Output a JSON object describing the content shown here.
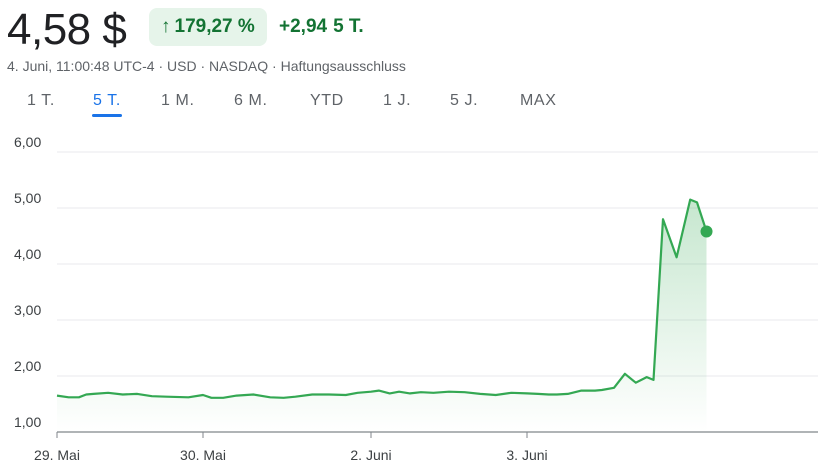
{
  "quote": {
    "price": "4,58 $",
    "change_arrow": "↑",
    "change_pct": "179,27 %",
    "change_abs": "+2,94",
    "change_period": "5 T.",
    "meta": "4. Juni, 11:00:48 UTC-4 · USD · NASDAQ · Haftungsausschluss"
  },
  "tabs": [
    "1 T.",
    "5 T.",
    "1 M.",
    "6 M.",
    "YTD",
    "1 J.",
    "5 J.",
    "MAX"
  ],
  "active_tab": "5 T.",
  "colors": {
    "accent": "#1a73e8",
    "up": "#137333",
    "line": "#34a853",
    "pill_bg": "#e6f4ea"
  },
  "chart_data": {
    "type": "area",
    "yticks": [
      "6,00",
      "5,00",
      "4,00",
      "3,00",
      "2,00",
      "1,00"
    ],
    "ytick_values": [
      6,
      5,
      4,
      3,
      2,
      1
    ],
    "ylim": [
      1,
      6.2
    ],
    "xticks": [
      {
        "label": "29. Mai",
        "x": 0
      },
      {
        "label": "30. Mai",
        "x": 1
      },
      {
        "label": "2. Juni",
        "x": 2
      },
      {
        "label": "3. Juni",
        "x": 3
      }
    ],
    "xlim": [
      0,
      5.85
    ],
    "series": [
      {
        "x": [
          0,
          0.08,
          0.15,
          0.2,
          0.25,
          0.35,
          0.45,
          0.55,
          0.65,
          0.75,
          0.9,
          1.0,
          1.05,
          1.12,
          1.2,
          1.3,
          1.4,
          1.48,
          1.55,
          1.65,
          1.75,
          1.85,
          1.92,
          2.0,
          2.05,
          2.12,
          2.18,
          2.25,
          2.32,
          2.4,
          2.5,
          2.6,
          2.7,
          2.8,
          2.9,
          3.0,
          3.08,
          3.16,
          3.22,
          3.3,
          3.4,
          3.5,
          3.55,
          3.64,
          3.72,
          3.8,
          3.88,
          3.93,
          4.0,
          4.1,
          4.2,
          4.25,
          4.32
        ],
        "values": [
          1.65,
          1.62,
          1.62,
          1.67,
          1.68,
          1.7,
          1.67,
          1.68,
          1.64,
          1.63,
          1.62,
          1.66,
          1.61,
          1.61,
          1.65,
          1.67,
          1.62,
          1.61,
          1.63,
          1.67,
          1.67,
          1.66,
          1.7,
          1.72,
          1.74,
          1.69,
          1.72,
          1.69,
          1.71,
          1.7,
          1.72,
          1.71,
          1.68,
          1.66,
          1.7,
          1.69,
          1.68,
          1.67,
          1.67,
          1.68,
          1.74,
          1.74,
          1.75,
          1.79,
          2.04,
          1.88,
          1.98,
          1.93,
          4.8,
          4.12,
          5.15,
          5.1,
          4.58
        ]
      }
    ],
    "last_point": {
      "x": 4.32,
      "value": 4.58
    }
  }
}
